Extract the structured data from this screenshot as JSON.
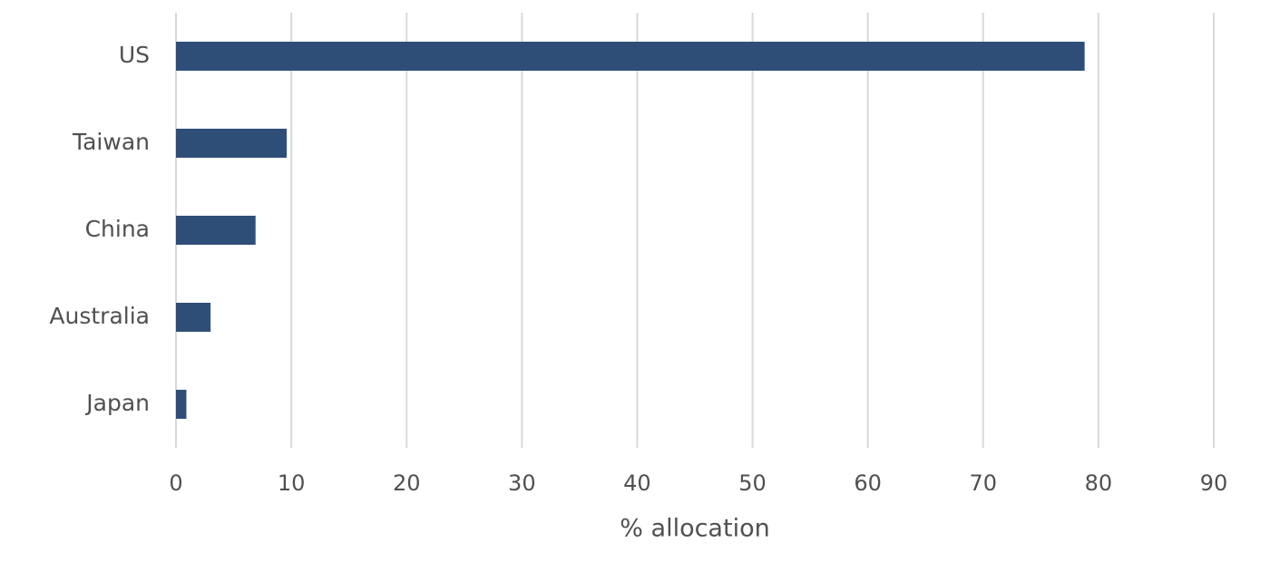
{
  "chart_data": {
    "type": "bar",
    "orientation": "horizontal",
    "categories": [
      "US",
      "Taiwan",
      "China",
      "Australia",
      "Japan"
    ],
    "values": [
      78.8,
      9.6,
      6.9,
      3.0,
      0.9
    ],
    "color": "#2e4e78",
    "xlabel": "% allocation",
    "xlim": [
      0,
      90
    ],
    "xticks": [
      0,
      10,
      20,
      30,
      40,
      50,
      60,
      70,
      80,
      90
    ],
    "grid": true
  }
}
